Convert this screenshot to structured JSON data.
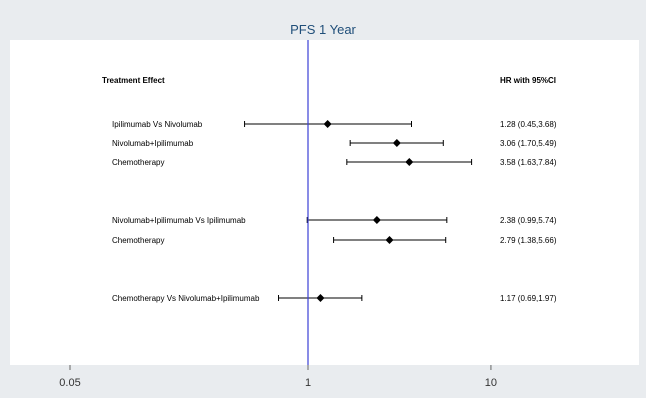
{
  "chart_data": {
    "type": "forest",
    "title": "PFS 1 Year",
    "x_scale": "log",
    "xlim": [
      0.02,
      40
    ],
    "x_ticks": [
      {
        "value": 0.05,
        "label": "0.05"
      },
      {
        "value": 1,
        "label": "1"
      },
      {
        "value": 10,
        "label": "10"
      }
    ],
    "reference_line": 1,
    "column_headers": {
      "left": "Treatment Effect",
      "right": "HR with 95%CI"
    },
    "rows": [
      {
        "label": "Ipilimumab Vs Nivolumab",
        "hr": 1.28,
        "lo": 0.45,
        "hi": 3.68,
        "hr_text": "1.28 (0.45,3.68)"
      },
      {
        "label": "Nivolumab+Ipilimumab",
        "hr": 3.06,
        "lo": 1.7,
        "hi": 5.49,
        "hr_text": "3.06 (1.70,5.49)"
      },
      {
        "label": "Chemotherapy",
        "hr": 3.58,
        "lo": 1.63,
        "hi": 7.84,
        "hr_text": "3.58 (1.63,7.84)"
      },
      {
        "label": "Nivolumab+Ipilimumab Vs Ipilimumab",
        "hr": 2.38,
        "lo": 0.99,
        "hi": 5.74,
        "hr_text": "2.38 (0.99,5.74)"
      },
      {
        "label": "Chemotherapy",
        "hr": 2.79,
        "lo": 1.38,
        "hi": 5.66,
        "hr_text": "2.79 (1.38,5.66)"
      },
      {
        "label": "Chemotherapy Vs Nivolumab+Ipilimumab",
        "hr": 1.17,
        "lo": 0.69,
        "hi": 1.97,
        "hr_text": "1.17 (0.69,1.97)"
      }
    ],
    "colors": {
      "outer_background": "#e9ecef",
      "plot_background": "#ffffff",
      "reference_line": "#3b3fd6",
      "marker": "#000000",
      "title": "#1f4e79"
    }
  }
}
